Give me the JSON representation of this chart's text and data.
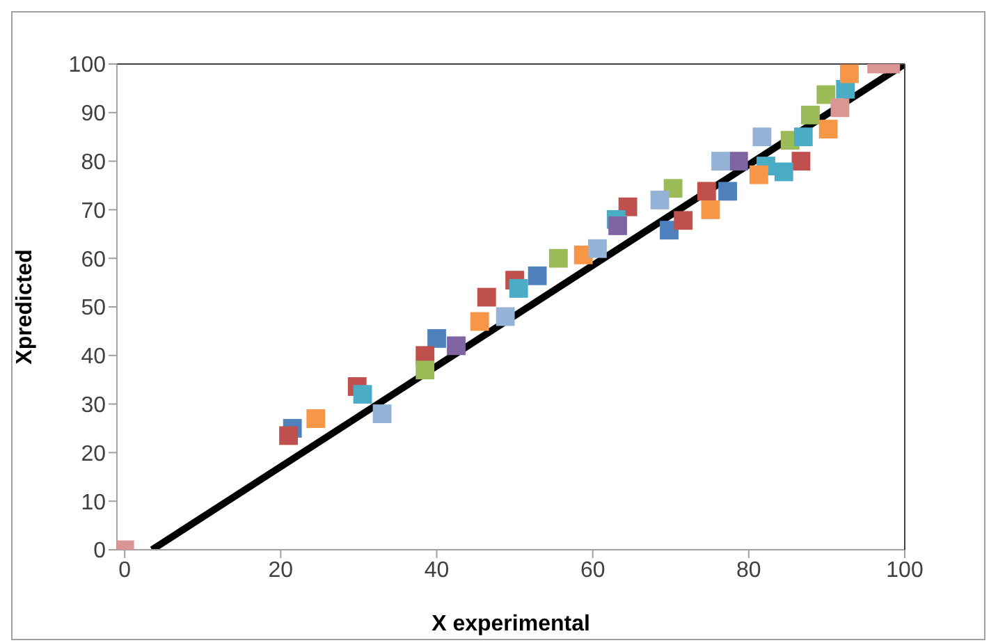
{
  "chart_data": {
    "type": "scatter",
    "xlabel": "X experimental",
    "ylabel": "Xpredicted",
    "xlim": [
      -1,
      100
    ],
    "ylim": [
      0,
      100
    ],
    "xticks": [
      0,
      20,
      40,
      60,
      80,
      100
    ],
    "yticks": [
      0,
      10,
      20,
      30,
      40,
      50,
      60,
      70,
      80,
      90,
      100
    ],
    "marker": "square",
    "series": [
      {
        "color": "#4f81bd",
        "x": [
          21.5,
          40,
          52.9,
          69.8,
          77.3
        ],
        "values": [
          25,
          43.5,
          56.4,
          65.8,
          73.8
        ]
      },
      {
        "color": "#c0504d",
        "x": [
          21,
          29.8,
          38.5,
          46.4,
          50,
          64.5,
          71.6,
          74.6,
          86.7
        ],
        "values": [
          23.5,
          33.6,
          40,
          52,
          55.5,
          70.6,
          67.8,
          73.8,
          80
        ]
      },
      {
        "color": "#9bbb59",
        "x": [
          38.5,
          55.6,
          70.3,
          85.3,
          87.9,
          89.9
        ],
        "values": [
          37,
          60,
          74.4,
          84.3,
          89.5,
          93.7
        ]
      },
      {
        "color": "#4bacc6",
        "x": [
          30.5,
          50.5,
          63,
          82.2,
          84.5,
          87,
          92.4
        ],
        "values": [
          32,
          53.8,
          68,
          79,
          77.8,
          85,
          94.8
        ]
      },
      {
        "color": "#8064a2",
        "x": [
          42.5,
          63.2,
          78.7
        ],
        "values": [
          42,
          66.7,
          80
        ]
      },
      {
        "color": "#f79646",
        "x": [
          24.5,
          45.5,
          58.8,
          75.1,
          81.3,
          90.2,
          92.9
        ],
        "values": [
          27,
          47,
          60.7,
          70,
          77.2,
          86.6,
          98
        ]
      },
      {
        "color": "#95b3d7",
        "x": [
          33,
          48.8,
          60.6,
          68.6,
          76.4,
          81.7
        ],
        "values": [
          28,
          48,
          62,
          72,
          80,
          85
        ]
      },
      {
        "color": "#d99694",
        "x": [
          0,
          91.7,
          96.4,
          98.2
        ],
        "values": [
          0,
          91,
          100,
          100
        ]
      },
      {
        "type": "line",
        "color": "#000000",
        "marker": "none",
        "line_style": "solid",
        "x": [
          3.5,
          100
        ],
        "values": [
          0,
          100
        ]
      }
    ]
  }
}
